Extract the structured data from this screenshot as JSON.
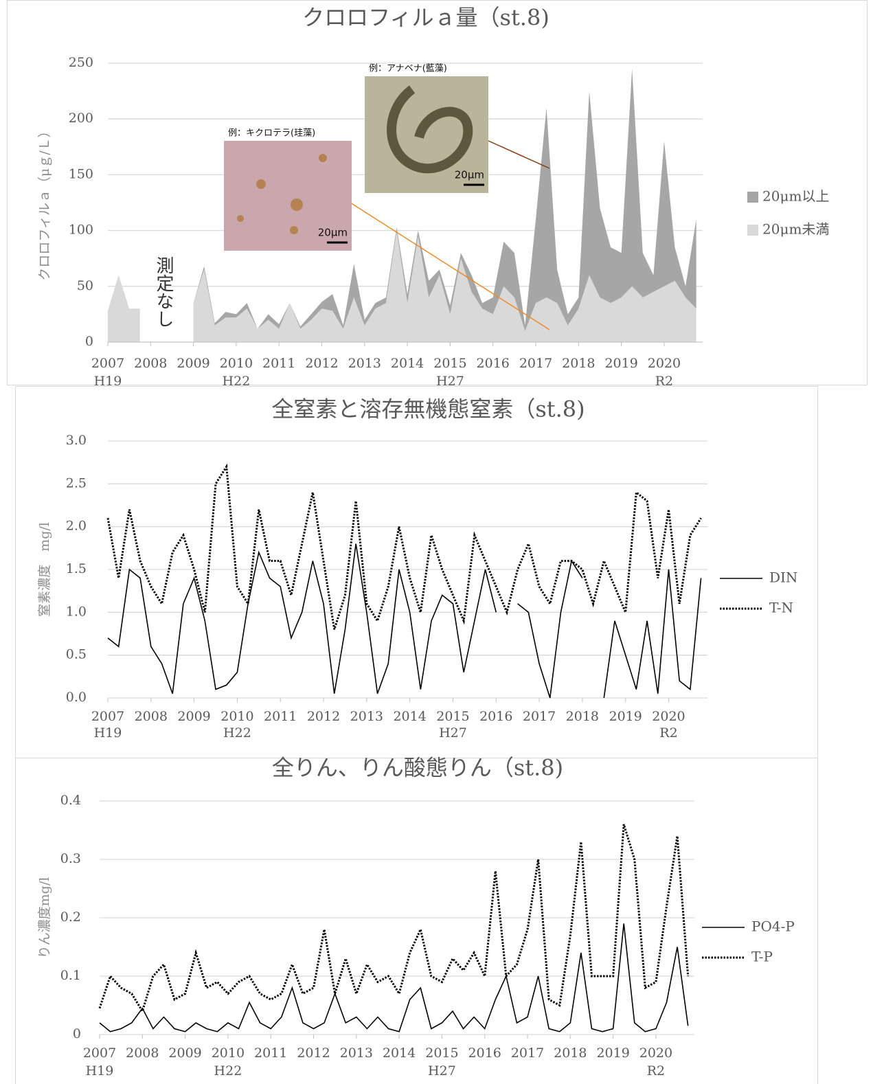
{
  "chart_data": [
    {
      "type": "area",
      "stacked": true,
      "title": "クロロフィルａ量（st.8)",
      "y_label": "クロロフィルａ（μｇ/Ｌ）",
      "x": [
        2007,
        2007.25,
        2007.5,
        2007.75,
        2008,
        2008.25,
        2008.5,
        2008.75,
        2009,
        2009.25,
        2009.5,
        2009.75,
        2010,
        2010.25,
        2010.5,
        2010.75,
        2011,
        2011.25,
        2011.5,
        2011.75,
        2012,
        2012.25,
        2012.5,
        2012.75,
        2013,
        2013.25,
        2013.5,
        2013.75,
        2014,
        2014.25,
        2014.5,
        2014.75,
        2015,
        2015.25,
        2015.5,
        2015.75,
        2016,
        2016.25,
        2016.5,
        2016.75,
        2017,
        2017.25,
        2017.5,
        2017.75,
        2018,
        2018.25,
        2018.5,
        2018.75,
        2019,
        2019.25,
        2019.5,
        2019.75,
        2020,
        2020.25,
        2020.5,
        2020.75
      ],
      "series": [
        {
          "name": "20μm未満",
          "color": "#d9d9d9",
          "values": [
            28,
            60,
            30,
            30,
            null,
            null,
            null,
            null,
            35,
            65,
            15,
            22,
            22,
            30,
            12,
            20,
            12,
            35,
            12,
            20,
            30,
            28,
            12,
            40,
            15,
            30,
            35,
            100,
            35,
            95,
            40,
            60,
            25,
            75,
            45,
            30,
            25,
            50,
            40,
            10,
            35,
            40,
            35,
            15,
            30,
            60,
            40,
            35,
            40,
            50,
            40,
            45,
            50,
            55,
            40,
            30
          ]
        },
        {
          "name": "20μm以上",
          "color": "#a6a6a6",
          "values": [
            0,
            0,
            0,
            0,
            null,
            null,
            null,
            null,
            0,
            3,
            2,
            5,
            3,
            5,
            0,
            5,
            4,
            0,
            2,
            5,
            6,
            15,
            3,
            30,
            5,
            5,
            5,
            3,
            8,
            5,
            15,
            5,
            8,
            5,
            15,
            5,
            15,
            40,
            40,
            5,
            75,
            170,
            30,
            10,
            10,
            165,
            80,
            50,
            40,
            195,
            40,
            15,
            130,
            30,
            10,
            80
          ]
        }
      ],
      "xlim": [
        2007,
        2020.9
      ],
      "xticks": [
        2007,
        2008,
        2009,
        2010,
        2011,
        2012,
        2013,
        2014,
        2015,
        2016,
        2017,
        2018,
        2019,
        2020
      ],
      "era_labels": [
        {
          "value": 2007,
          "label": "H19"
        },
        {
          "value": 2010,
          "label": "H22"
        },
        {
          "value": 2015,
          "label": "H27"
        },
        {
          "value": 2020,
          "label": "R2"
        }
      ],
      "ylim": [
        0,
        250
      ],
      "yticks": [
        0,
        50,
        100,
        150,
        200,
        250
      ],
      "grid": true,
      "annotations": [
        "測定なし"
      ],
      "insets": [
        {
          "label": "例：キクロテラ(珪藻)",
          "scale": "20μm"
        },
        {
          "label": "例：アナベナ(藍藻)",
          "scale": "20μm"
        }
      ]
    },
    {
      "type": "line",
      "title": "全窒素と溶存無機態窒素（st.8)",
      "y_label": "窒素濃度　mg/l",
      "x": [
        2007,
        2007.25,
        2007.5,
        2007.75,
        2008,
        2008.25,
        2008.5,
        2008.75,
        2009,
        2009.25,
        2009.5,
        2009.75,
        2010,
        2010.25,
        2010.5,
        2010.75,
        2011,
        2011.25,
        2011.5,
        2011.75,
        2012,
        2012.25,
        2012.5,
        2012.75,
        2013,
        2013.25,
        2013.5,
        2013.75,
        2014,
        2014.25,
        2014.5,
        2014.75,
        2015,
        2015.25,
        2015.5,
        2015.75,
        2016,
        2016.25,
        2016.5,
        2016.75,
        2017,
        2017.25,
        2017.5,
        2017.75,
        2018,
        2018.25,
        2018.5,
        2018.75,
        2019,
        2019.25,
        2019.5,
        2019.75,
        2020,
        2020.25,
        2020.5,
        2020.75
      ],
      "series": [
        {
          "name": "DIN",
          "color": "#000000",
          "style": "solid",
          "values": [
            0.7,
            0.6,
            1.5,
            1.4,
            0.6,
            0.4,
            0.05,
            1.1,
            1.4,
            0.9,
            0.1,
            0.15,
            0.3,
            1.1,
            1.7,
            1.4,
            1.3,
            0.7,
            1.0,
            1.6,
            1.1,
            0.05,
            0.8,
            1.8,
            1.0,
            0.05,
            0.4,
            1.5,
            1.0,
            0.1,
            0.9,
            1.2,
            1.1,
            0.3,
            0.9,
            1.5,
            1.0,
            null,
            1.1,
            1.0,
            0.4,
            0.0,
            1.0,
            1.6,
            1.4,
            null,
            0.0,
            0.9,
            0.5,
            0.1,
            0.9,
            0.05,
            1.5,
            0.2,
            0.1,
            1.4
          ]
        },
        {
          "name": "T-N",
          "color": "#000000",
          "style": "dotted",
          "values": [
            2.1,
            1.4,
            2.2,
            1.6,
            1.3,
            1.1,
            1.7,
            1.9,
            1.5,
            1.0,
            2.5,
            2.7,
            1.3,
            1.1,
            2.2,
            1.6,
            1.6,
            1.2,
            1.8,
            2.4,
            1.6,
            0.8,
            1.2,
            2.3,
            1.1,
            0.9,
            1.3,
            2.0,
            1.4,
            1.0,
            1.9,
            1.5,
            1.2,
            0.9,
            1.9,
            1.6,
            1.3,
            1.0,
            1.5,
            1.8,
            1.3,
            1.1,
            1.6,
            1.6,
            1.5,
            1.1,
            1.6,
            1.3,
            1.0,
            2.4,
            2.3,
            1.4,
            2.2,
            1.1,
            1.9,
            2.1
          ]
        }
      ],
      "xlim": [
        2007,
        2020.9
      ],
      "xticks": [
        2007,
        2008,
        2009,
        2010,
        2011,
        2012,
        2013,
        2014,
        2015,
        2016,
        2017,
        2018,
        2019,
        2020
      ],
      "era_labels": [
        {
          "value": 2007,
          "label": "H19"
        },
        {
          "value": 2010,
          "label": "H22"
        },
        {
          "value": 2015,
          "label": "H27"
        },
        {
          "value": 2020,
          "label": "R2"
        }
      ],
      "ylim": [
        0,
        3
      ],
      "yticks": [
        {
          "value": 0,
          "label": "0.0"
        },
        0.5,
        {
          "value": 1,
          "label": "1.0"
        },
        1.5,
        {
          "value": 2,
          "label": "2.0"
        },
        2.5,
        {
          "value": 3,
          "label": "3.0"
        }
      ],
      "grid": true
    },
    {
      "type": "line",
      "title": "全りん、りん酸態りん（st.8)",
      "y_label": "りん濃度mg/l",
      "x": [
        2007,
        2007.25,
        2007.5,
        2007.75,
        2008,
        2008.25,
        2008.5,
        2008.75,
        2009,
        2009.25,
        2009.5,
        2009.75,
        2010,
        2010.25,
        2010.5,
        2010.75,
        2011,
        2011.25,
        2011.5,
        2011.75,
        2012,
        2012.25,
        2012.5,
        2012.75,
        2013,
        2013.25,
        2013.5,
        2013.75,
        2014,
        2014.25,
        2014.5,
        2014.75,
        2015,
        2015.25,
        2015.5,
        2015.75,
        2016,
        2016.25,
        2016.5,
        2016.75,
        2017,
        2017.25,
        2017.5,
        2017.75,
        2018,
        2018.25,
        2018.5,
        2018.75,
        2019,
        2019.25,
        2019.5,
        2019.75,
        2020,
        2020.25,
        2020.5,
        2020.75
      ],
      "series": [
        {
          "name": "PO4-P",
          "color": "#000000",
          "style": "solid",
          "values": [
            0.02,
            0.005,
            0.01,
            0.02,
            0.045,
            0.01,
            0.03,
            0.01,
            0.005,
            0.02,
            0.01,
            0.005,
            0.02,
            0.01,
            0.055,
            0.02,
            0.01,
            0.03,
            0.08,
            0.02,
            0.01,
            0.02,
            0.07,
            0.02,
            0.03,
            0.01,
            0.03,
            0.01,
            0.005,
            0.06,
            0.08,
            0.01,
            0.02,
            0.04,
            0.01,
            0.03,
            0.01,
            0.06,
            0.1,
            0.02,
            0.03,
            0.1,
            0.01,
            0.005,
            0.02,
            0.14,
            0.01,
            0.005,
            0.01,
            0.19,
            0.02,
            0.005,
            0.01,
            0.055,
            0.15,
            0.015
          ]
        },
        {
          "name": "T-P",
          "color": "#000000",
          "style": "dotted",
          "values": [
            0.045,
            0.1,
            0.08,
            0.07,
            0.04,
            0.1,
            0.12,
            0.06,
            0.07,
            0.14,
            0.08,
            0.09,
            0.07,
            0.09,
            0.1,
            0.07,
            0.06,
            0.07,
            0.12,
            0.07,
            0.08,
            0.18,
            0.07,
            0.13,
            0.07,
            0.12,
            0.09,
            0.1,
            0.07,
            0.14,
            0.18,
            0.1,
            0.09,
            0.13,
            0.11,
            0.14,
            0.1,
            0.28,
            0.1,
            0.12,
            0.18,
            0.3,
            0.06,
            0.05,
            0.17,
            0.33,
            0.1,
            0.1,
            0.1,
            0.36,
            0.3,
            0.08,
            0.09,
            0.22,
            0.34,
            0.1
          ]
        }
      ],
      "xlim": [
        2007,
        2020.9
      ],
      "xticks": [
        2007,
        2008,
        2009,
        2010,
        2011,
        2012,
        2013,
        2014,
        2015,
        2016,
        2017,
        2018,
        2019,
        2020
      ],
      "era_labels": [
        {
          "value": 2007,
          "label": "H19"
        },
        {
          "value": 2010,
          "label": "H22"
        },
        {
          "value": 2015,
          "label": "H27"
        },
        {
          "value": 2020,
          "label": "R2"
        }
      ],
      "ylim": [
        0,
        0.4
      ],
      "yticks": [
        0,
        0.1,
        0.2,
        0.3,
        0.4
      ],
      "grid": true
    }
  ]
}
